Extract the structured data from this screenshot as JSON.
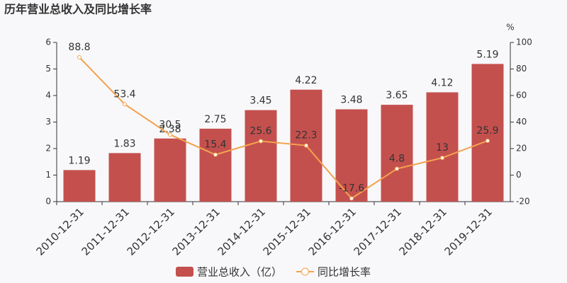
{
  "chart_data": {
    "type": "bar",
    "title": "历年营业总收入及同比增长率",
    "categories": [
      "2010-12-31",
      "2011-12-31",
      "2012-12-31",
      "2013-12-31",
      "2014-12-31",
      "2015-12-31",
      "2016-12-31",
      "2017-12-31",
      "2018-12-31",
      "2019-12-31"
    ],
    "series": [
      {
        "name": "营业总收入（亿）",
        "type": "bar",
        "color": "#c4504e",
        "values": [
          1.19,
          1.83,
          2.38,
          2.75,
          3.45,
          4.22,
          3.48,
          3.65,
          4.12,
          5.19
        ]
      },
      {
        "name": "同比增长率",
        "type": "line",
        "axis": "y2",
        "color": "#f3a24e",
        "values": [
          88.8,
          53.4,
          30.5,
          15.4,
          25.6,
          22.3,
          -17.6,
          4.8,
          13,
          25.9
        ]
      }
    ],
    "ylim": [
      0,
      6
    ],
    "yticks": [
      0,
      1,
      2,
      3,
      4,
      5,
      6
    ],
    "y2lim": [
      -20,
      100
    ],
    "y2ticks": [
      -20,
      0,
      20,
      40,
      60,
      80,
      100
    ],
    "y2label": "%"
  }
}
